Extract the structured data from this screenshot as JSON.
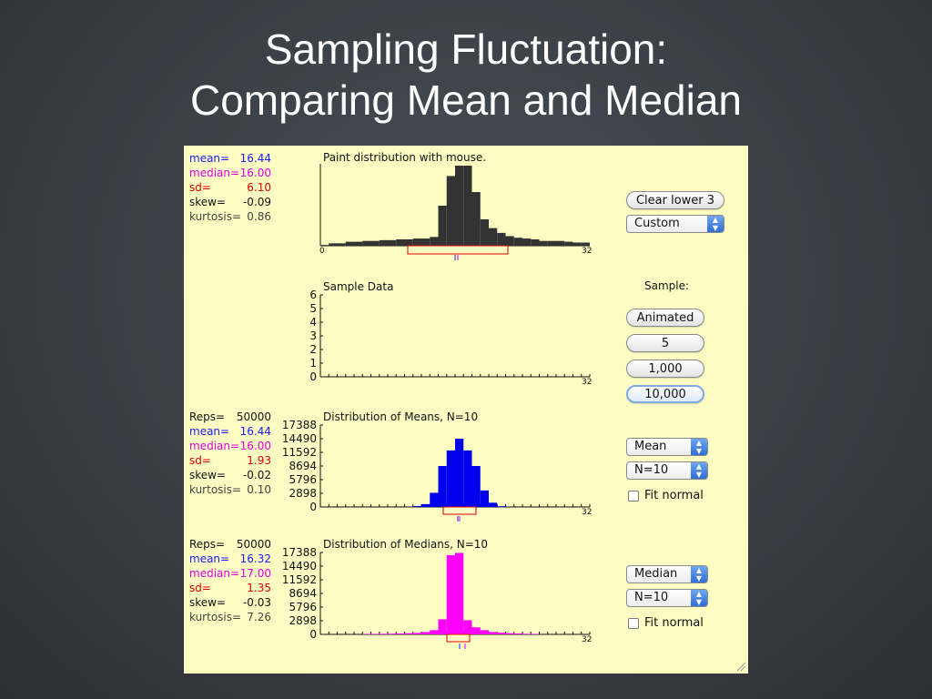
{
  "slide": {
    "title_line1": "Sampling Fluctuation:",
    "title_line2": "Comparing Mean and Median"
  },
  "population": {
    "title": "Paint distribution with mouse.",
    "stats": [
      {
        "label": "mean=",
        "value": "16.44",
        "color": "#1a1aff"
      },
      {
        "label": "median=",
        "value": "16.00",
        "color": "#e000e0"
      },
      {
        "label": "sd=",
        "value": "6.10",
        "color": "#e00000"
      },
      {
        "label": "skew=",
        "value": "-0.09",
        "color": "#111111"
      },
      {
        "label": "kurtosis=",
        "value": "0.86",
        "color": "#444444"
      }
    ],
    "x_min": "0",
    "x_max": "32",
    "bar_color": "#333333"
  },
  "sample": {
    "title": "Sample Data",
    "y_ticks": [
      "6",
      "5",
      "4",
      "3",
      "2",
      "1",
      "0"
    ],
    "x_max": "32"
  },
  "means": {
    "title": "Distribution of Means, N=10",
    "stats": [
      {
        "label": "Reps=",
        "value": "50000",
        "color": "#111111"
      },
      {
        "label": "mean=",
        "value": "16.44",
        "color": "#1a1aff"
      },
      {
        "label": "median=",
        "value": "16.00",
        "color": "#e000e0"
      },
      {
        "label": "sd=",
        "value": "1.93",
        "color": "#e00000"
      },
      {
        "label": "skew=",
        "value": "-0.02",
        "color": "#111111"
      },
      {
        "label": "kurtosis=",
        "value": "0.10",
        "color": "#444444"
      }
    ],
    "y_ticks": [
      "17388",
      "14490",
      "11592",
      "8694",
      "5796",
      "2898",
      "0"
    ],
    "x_max": "32",
    "bar_color": "#0000ee"
  },
  "medians": {
    "title": "Distribution of Medians, N=10",
    "stats": [
      {
        "label": "Reps=",
        "value": "50000",
        "color": "#111111"
      },
      {
        "label": "mean=",
        "value": "16.32",
        "color": "#1a1aff"
      },
      {
        "label": "median=",
        "value": "17.00",
        "color": "#e000e0"
      },
      {
        "label": "sd=",
        "value": "1.35",
        "color": "#e00000"
      },
      {
        "label": "skew=",
        "value": "-0.03",
        "color": "#111111"
      },
      {
        "label": "kurtosis=",
        "value": "7.26",
        "color": "#444444"
      }
    ],
    "y_ticks": [
      "17388",
      "14490",
      "11592",
      "8694",
      "5796",
      "2898",
      "0"
    ],
    "x_max": "32",
    "bar_color": "#ff00ff"
  },
  "controls": {
    "clear_button": "Clear lower 3",
    "dist_select": "Custom",
    "sample_label": "Sample:",
    "animated_button": "Animated",
    "btn_5": "5",
    "btn_1000": "1,000",
    "btn_10000": "10,000",
    "stat_select_1": "Mean",
    "n_select_1": "N=10",
    "fit_normal_1": "Fit normal",
    "stat_select_2": "Median",
    "n_select_2": "N=10",
    "fit_normal_2": "Fit normal"
  },
  "chart_data": [
    {
      "type": "bar",
      "title": "Paint distribution with mouse.",
      "x": [
        0.5,
        1.5,
        2.5,
        3.5,
        4.5,
        5.5,
        6.5,
        7.5,
        8.5,
        9.5,
        10.5,
        11.5,
        12.5,
        13.5,
        14.5,
        15.5,
        16.5,
        17.5,
        18.5,
        19.5,
        20.5,
        21.5,
        22.5,
        23.5,
        24.5,
        25.5,
        26.5,
        27.5,
        28.5,
        29.5,
        30.5,
        31.5
      ],
      "values": [
        0.01,
        0.03,
        0.03,
        0.05,
        0.05,
        0.06,
        0.06,
        0.07,
        0.07,
        0.08,
        0.08,
        0.09,
        0.09,
        0.11,
        0.5,
        0.87,
        1.0,
        1.0,
        0.67,
        0.33,
        0.22,
        0.16,
        0.12,
        0.1,
        0.09,
        0.08,
        0.06,
        0.06,
        0.06,
        0.05,
        0.04,
        0.04
      ],
      "xlim": [
        0,
        32
      ],
      "ylim": [
        0,
        1
      ]
    },
    {
      "type": "bar",
      "title": "Distribution of Means, N=10",
      "x": [
        11.5,
        12.5,
        13.5,
        14.5,
        15.5,
        16.5,
        17.5,
        18.5,
        19.5,
        20.5,
        21.5
      ],
      "values": [
        200,
        600,
        3000,
        8694,
        12000,
        14490,
        12000,
        8694,
        3500,
        900,
        150
      ],
      "xlim": [
        0,
        32
      ],
      "ylim": [
        0,
        17388
      ]
    },
    {
      "type": "bar",
      "title": "Distribution of Medians, N=10",
      "x": [
        5.5,
        6.5,
        7.5,
        8.5,
        9.5,
        10.5,
        11.5,
        12.5,
        13.5,
        14.5,
        15.5,
        16.5,
        17.5,
        18.5,
        19.5,
        20.5,
        21.5,
        22.5,
        23.5,
        24.5,
        25.5
      ],
      "values": [
        100,
        100,
        120,
        150,
        200,
        250,
        300,
        500,
        900,
        3200,
        16800,
        17300,
        3000,
        1500,
        900,
        500,
        350,
        250,
        180,
        120,
        100
      ],
      "xlim": [
        0,
        32
      ],
      "ylim": [
        0,
        17388
      ]
    }
  ]
}
